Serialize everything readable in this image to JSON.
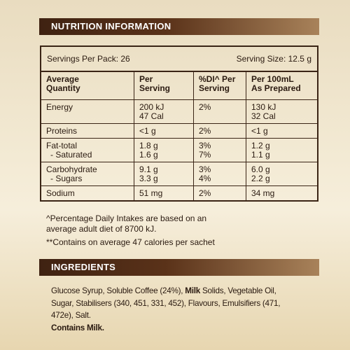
{
  "header": {
    "title": "NUTRITION INFORMATION"
  },
  "servings": {
    "per_pack": "Servings Per Pack: 26",
    "size": "Serving Size: 12.5 g"
  },
  "table": {
    "columns": [
      [
        "Average",
        "Quantity"
      ],
      [
        "Per",
        "Serving"
      ],
      [
        "%DI^ Per",
        "Serving"
      ],
      [
        "Per 100mL",
        "As Prepared"
      ]
    ],
    "rows": [
      [
        [
          "Energy"
        ],
        [
          "200 kJ",
          "47 Cal"
        ],
        [
          "2%"
        ],
        [
          "130 kJ",
          "32 Cal"
        ]
      ],
      [
        [
          "Proteins"
        ],
        [
          "<1 g"
        ],
        [
          "2%"
        ],
        [
          "<1 g"
        ]
      ],
      [
        [
          "Fat-total",
          "- Saturated"
        ],
        [
          "1.8 g",
          "1.6 g"
        ],
        [
          "3%",
          "7%"
        ],
        [
          "1.2 g",
          "1.1 g"
        ]
      ],
      [
        [
          "Carbohydrate",
          "- Sugars"
        ],
        [
          "9.1 g",
          "3.3 g"
        ],
        [
          "3%",
          "4%"
        ],
        [
          "6.0 g",
          "2.2 g"
        ]
      ],
      [
        [
          "Sodium"
        ],
        [
          "51 mg"
        ],
        [
          "2%"
        ],
        [
          "34 mg"
        ]
      ]
    ]
  },
  "footnotes": [
    [
      "^Percentage Daily Intakes are based on an",
      "average adult diet of 8700 kJ."
    ],
    [
      "**Contains on average 47 calories per sachet"
    ]
  ],
  "ingredients": {
    "title": "INGREDIENTS",
    "lines": [
      [
        "Glucose Syrup, Soluble Coffee (24%), ",
        "Milk",
        " Solids, Vegetable Oil,"
      ],
      [
        "Sugar, Stabilisers (340, 451, 331, 452), Flavours, Emulsifiers (471,"
      ],
      [
        "472e), Salt."
      ]
    ],
    "allergen": "Contains Milk."
  }
}
